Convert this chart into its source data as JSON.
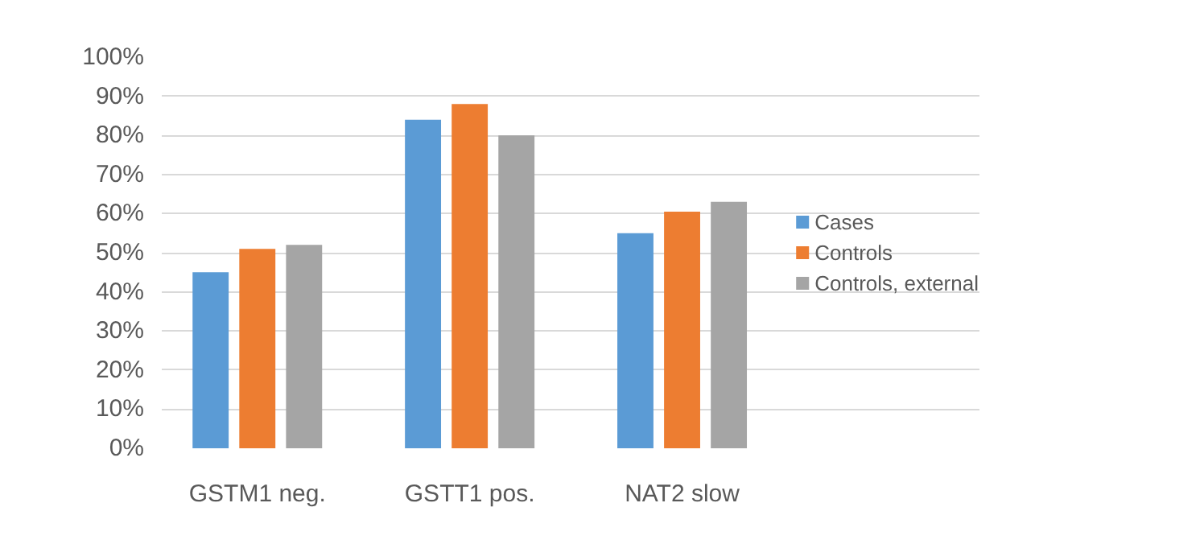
{
  "chart_data": {
    "type": "bar",
    "categories": [
      "GSTM1 neg.",
      "GSTT1 pos.",
      "NAT2 slow"
    ],
    "series": [
      {
        "name": "Cases",
        "color": "#5b9bd5",
        "values": [
          45,
          84,
          55
        ]
      },
      {
        "name": "Controls",
        "color": "#ed7d31",
        "values": [
          51,
          88,
          60.5
        ]
      },
      {
        "name": "Controls, external",
        "color": "#a5a5a5",
        "values": [
          52,
          80,
          63
        ]
      }
    ],
    "ylim": [
      0,
      100
    ],
    "yticks": [
      {
        "value": 0,
        "label": "0%"
      },
      {
        "value": 10,
        "label": "10%"
      },
      {
        "value": 20,
        "label": "20%"
      },
      {
        "value": 30,
        "label": "30%"
      },
      {
        "value": 40,
        "label": "40%"
      },
      {
        "value": 50,
        "label": "50%"
      },
      {
        "value": 60,
        "label": "60%"
      },
      {
        "value": 70,
        "label": "70%"
      },
      {
        "value": 80,
        "label": "80%"
      },
      {
        "value": 90,
        "label": "90%"
      },
      {
        "value": 100,
        "label": "100%"
      }
    ],
    "grid": "y",
    "legend": "right"
  }
}
